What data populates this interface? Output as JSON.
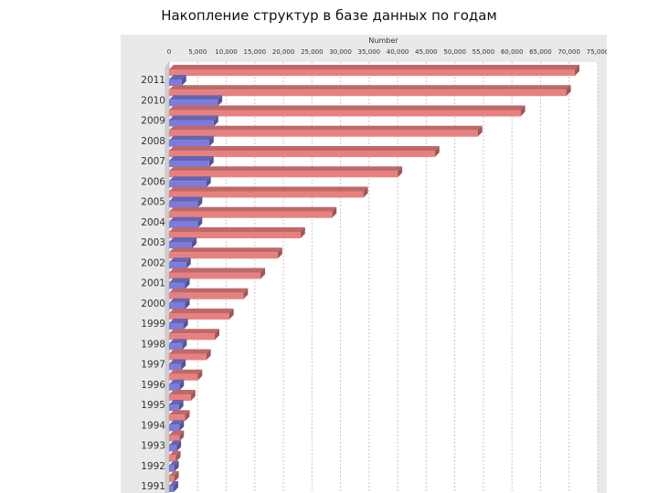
{
  "page": {
    "title": "Накопление структур в базе данных по годам"
  },
  "chart_data": {
    "type": "bar",
    "orientation": "horizontal",
    "style": "3d",
    "title": "Накопление структур в базе данных по годам",
    "xlabel": "Number",
    "ylabel": "",
    "xlim": [
      0,
      75000
    ],
    "x_ticks": [
      "0",
      "5,000",
      "10,000",
      "15,000",
      "20,000",
      "25,000",
      "30,000",
      "35,000",
      "40,000",
      "45,000",
      "50,000",
      "55,000",
      "60,000",
      "65,000",
      "70,000",
      "75,000"
    ],
    "grid": true,
    "categories": [
      "2011",
      "2010",
      "2009",
      "2008",
      "2007",
      "2006",
      "2005",
      "2004",
      "2003",
      "2002",
      "2001",
      "2000",
      "1999",
      "1998",
      "1997",
      "1996",
      "1995",
      "1994",
      "1993",
      "1992",
      "1991"
    ],
    "series": [
      {
        "color": "#e88080",
        "values": [
          71000,
          69500,
          61500,
          54000,
          46500,
          40000,
          34000,
          28500,
          23000,
          19000,
          16000,
          13000,
          10500,
          8000,
          6500,
          5000,
          3800,
          2800,
          1800,
          1200,
          900
        ]
      },
      {
        "color": "#7b7bdc",
        "values": [
          2200,
          8500,
          7800,
          7000,
          7000,
          6500,
          5000,
          5000,
          4000,
          3000,
          2800,
          2800,
          2500,
          2300,
          2100,
          1800,
          1700,
          1800,
          1300,
          900,
          800
        ]
      }
    ]
  }
}
